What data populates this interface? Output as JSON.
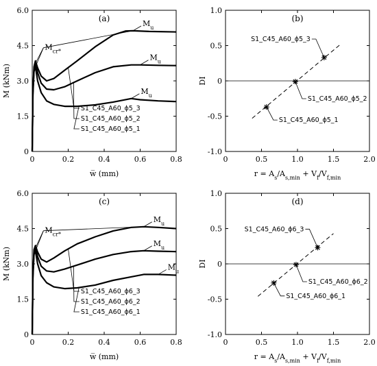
{
  "chart_data": [
    {
      "type": "line",
      "panel": "(a)",
      "xlabel": "w̅ (mm)",
      "ylabel": "M (kNm)",
      "xlim": [
        0,
        0.8
      ],
      "ylim": [
        0,
        6.0
      ],
      "xticks": [
        "0",
        "0.2",
        "0.4",
        "0.6",
        "0.8"
      ],
      "yticks": [
        "0",
        "1.5",
        "3.0",
        "4.5",
        "6.0"
      ],
      "grid": false,
      "series": [
        {
          "name": "S1_C45_A60_ϕ5_3",
          "x": [
            0,
            0.004,
            0.01,
            0.018,
            0.03,
            0.05,
            0.08,
            0.12,
            0.18,
            0.25,
            0.35,
            0.45,
            0.52,
            0.56,
            0.65,
            0.8
          ],
          "y": [
            0,
            2.6,
            3.6,
            3.85,
            3.55,
            3.2,
            3.0,
            3.1,
            3.45,
            3.85,
            4.45,
            4.95,
            5.12,
            5.13,
            5.1,
            5.08
          ]
        },
        {
          "name": "S1_C45_A60_ϕ5_2",
          "x": [
            0,
            0.004,
            0.01,
            0.018,
            0.03,
            0.05,
            0.08,
            0.12,
            0.18,
            0.25,
            0.35,
            0.45,
            0.55,
            0.6,
            0.7,
            0.8
          ],
          "y": [
            0,
            2.5,
            3.5,
            3.75,
            3.35,
            2.9,
            2.65,
            2.62,
            2.75,
            3.0,
            3.35,
            3.6,
            3.68,
            3.68,
            3.66,
            3.65
          ]
        },
        {
          "name": "S1_C45_A60_ϕ5_1",
          "x": [
            0,
            0.004,
            0.01,
            0.018,
            0.03,
            0.05,
            0.08,
            0.12,
            0.18,
            0.25,
            0.35,
            0.45,
            0.55,
            0.6,
            0.7,
            0.8
          ],
          "y": [
            0,
            2.4,
            3.4,
            3.6,
            3.0,
            2.5,
            2.15,
            2.0,
            1.92,
            1.92,
            1.98,
            2.1,
            2.25,
            2.2,
            2.15,
            2.12
          ]
        }
      ],
      "annotations": {
        "crack": "M",
        "crack_sub": "cr*",
        "ultimate": "M",
        "ultimate_sub": "u",
        "labels": [
          "S1_C45_A60_ϕ5_3",
          "S1_C45_A60_ϕ5_2",
          "S1_C45_A60_ϕ5_1"
        ]
      }
    },
    {
      "type": "scatter",
      "panel": "(b)",
      "xlabel_parts": [
        "r = A",
        "s",
        "/A",
        "s,min",
        " + V",
        "f",
        "/V",
        "f,min"
      ],
      "ylabel": "DI",
      "xlim": [
        0,
        2.0
      ],
      "ylim": [
        -1.0,
        1.0
      ],
      "xticks": [
        "0",
        "0.5",
        "1.0",
        "1.5",
        "2.0"
      ],
      "yticks": [
        "-1.0",
        "-0.5",
        "0",
        "0.5",
        "1.0"
      ],
      "points": [
        {
          "name": "S1_C45_A60_ϕ5_1",
          "x": 0.57,
          "y": -0.37
        },
        {
          "name": "S1_C45_A60_ϕ5_2",
          "x": 0.97,
          "y": -0.01
        },
        {
          "name": "S1_C45_A60_ϕ5_3",
          "x": 1.37,
          "y": 0.33
        }
      ],
      "fit_line": {
        "x": [
          0.37,
          1.6
        ],
        "y": [
          -0.53,
          0.52
        ]
      }
    },
    {
      "type": "line",
      "panel": "(c)",
      "xlabel": "w̅ (mm)",
      "ylabel": "M (kNm)",
      "xlim": [
        0,
        0.8
      ],
      "ylim": [
        0,
        6.0
      ],
      "xticks": [
        "0",
        "0.2",
        "0.4",
        "0.6",
        "0.8"
      ],
      "yticks": [
        "0",
        "1.5",
        "3.0",
        "4.5",
        "6.0"
      ],
      "series": [
        {
          "name": "S1_C45_A60_ϕ6_3",
          "x": [
            0,
            0.004,
            0.01,
            0.018,
            0.03,
            0.05,
            0.08,
            0.12,
            0.18,
            0.25,
            0.35,
            0.45,
            0.55,
            0.62,
            0.7,
            0.8
          ],
          "y": [
            0,
            2.6,
            3.6,
            3.78,
            3.5,
            3.2,
            3.08,
            3.25,
            3.55,
            3.85,
            4.15,
            4.4,
            4.55,
            4.58,
            4.55,
            4.5
          ]
        },
        {
          "name": "S1_C45_A60_ϕ6_2",
          "x": [
            0,
            0.004,
            0.01,
            0.018,
            0.03,
            0.05,
            0.08,
            0.12,
            0.18,
            0.25,
            0.35,
            0.45,
            0.55,
            0.62,
            0.7,
            0.8
          ],
          "y": [
            0,
            2.5,
            3.5,
            3.68,
            3.3,
            2.9,
            2.7,
            2.66,
            2.78,
            2.95,
            3.2,
            3.4,
            3.52,
            3.56,
            3.54,
            3.52
          ]
        },
        {
          "name": "S1_C45_A60_ϕ6_1",
          "x": [
            0,
            0.004,
            0.01,
            0.018,
            0.03,
            0.05,
            0.08,
            0.12,
            0.18,
            0.25,
            0.35,
            0.45,
            0.55,
            0.62,
            0.7,
            0.8
          ],
          "y": [
            0,
            2.4,
            3.4,
            3.55,
            3.0,
            2.5,
            2.2,
            2.02,
            1.95,
            1.98,
            2.1,
            2.3,
            2.45,
            2.55,
            2.55,
            2.52
          ]
        }
      ],
      "annotations": {
        "crack": "M",
        "crack_sub": "cr*",
        "ultimate": "M",
        "ultimate_sub": "u",
        "labels": [
          "S1_C45_A60_ϕ6_3",
          "S1_C45_A60_ϕ6_2",
          "S1_C45_A60_ϕ6_1"
        ]
      }
    },
    {
      "type": "scatter",
      "panel": "(d)",
      "xlabel_parts": [
        "r = A",
        "s",
        "/A",
        "s,min",
        " + V",
        "f",
        "/V",
        "f,min"
      ],
      "ylabel": "DI",
      "xlim": [
        0,
        2.0
      ],
      "ylim": [
        -1.0,
        1.0
      ],
      "xticks": [
        "0",
        "0.5",
        "1.0",
        "1.5",
        "2.0"
      ],
      "yticks": [
        "-1.0",
        "-0.5",
        "0",
        "0.5",
        "1.0"
      ],
      "points": [
        {
          "name": "S1_C45_A60_ϕ6_1",
          "x": 0.67,
          "y": -0.27
        },
        {
          "name": "S1_C45_A60_ϕ6_2",
          "x": 0.98,
          "y": -0.01
        },
        {
          "name": "S1_C45_A60_ϕ6_3",
          "x": 1.28,
          "y": 0.23
        }
      ],
      "fit_line": {
        "x": [
          0.45,
          1.5
        ],
        "y": [
          -0.46,
          0.43
        ]
      }
    }
  ]
}
